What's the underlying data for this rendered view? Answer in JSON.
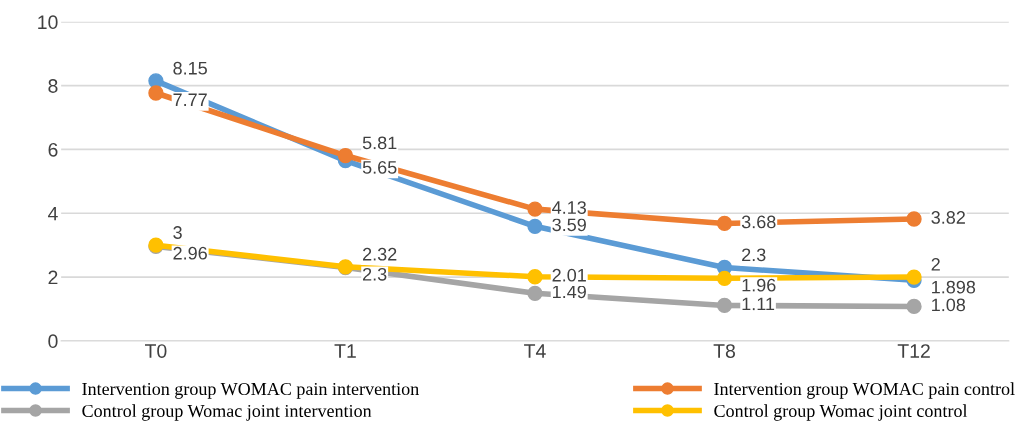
{
  "chart_data": {
    "type": "line",
    "categories": [
      "T0",
      "T1",
      "T4",
      "T8",
      "T12"
    ],
    "series": [
      {
        "name": "Intervention group WOMAC pain intervention",
        "color": "#5b9bd5",
        "values": [
          8.15,
          5.65,
          3.59,
          2.3,
          1.898
        ]
      },
      {
        "name": "Intervention group WOMAC pain control",
        "color": "#ed7d31",
        "values": [
          7.77,
          5.81,
          4.13,
          3.68,
          3.82
        ]
      },
      {
        "name": "Control group Womac joint intervention",
        "color": "#a5a5a5",
        "values": [
          2.96,
          2.3,
          1.49,
          1.11,
          1.08
        ]
      },
      {
        "name": "Control group Womac joint control",
        "color": "#ffc000",
        "values": [
          3,
          2.32,
          2.01,
          1.96,
          2
        ]
      }
    ],
    "ylim": [
      0,
      10
    ],
    "yticks": [
      0,
      2,
      4,
      6,
      8,
      10
    ],
    "grid": "y",
    "legend": "bottom",
    "marker": "circle",
    "line_style": "solid",
    "data_labels": true
  }
}
